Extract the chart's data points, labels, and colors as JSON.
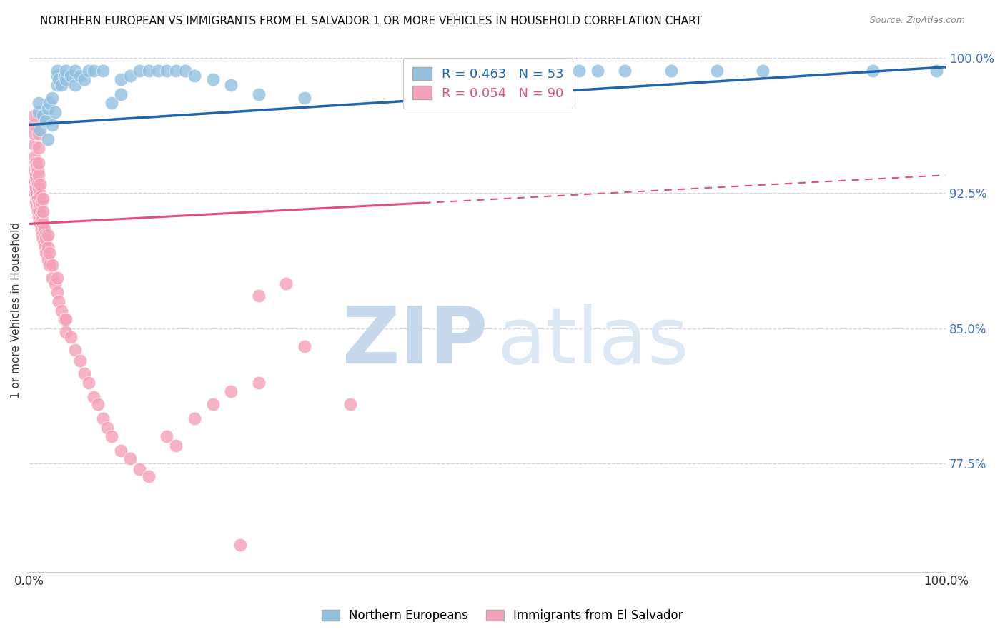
{
  "title": "NORTHERN EUROPEAN VS IMMIGRANTS FROM EL SALVADOR 1 OR MORE VEHICLES IN HOUSEHOLD CORRELATION CHART",
  "source": "Source: ZipAtlas.com",
  "ylabel": "1 or more Vehicles in Household",
  "legend_label_blue": "Northern Europeans",
  "legend_label_pink": "Immigrants from El Salvador",
  "R_blue": 0.463,
  "N_blue": 53,
  "R_pink": 0.054,
  "N_pink": 90,
  "blue_color": "#92c0e0",
  "pink_color": "#f4a0b8",
  "trendline_blue_color": "#2166ac",
  "trendline_pink_solid_color": "#e05080",
  "trendline_pink_dashed_color": "#e05080",
  "blue_scatter": [
    [
      0.01,
      0.97
    ],
    [
      0.01,
      0.975
    ],
    [
      0.012,
      0.96
    ],
    [
      0.015,
      0.968
    ],
    [
      0.018,
      0.965
    ],
    [
      0.02,
      0.955
    ],
    [
      0.02,
      0.972
    ],
    [
      0.022,
      0.975
    ],
    [
      0.025,
      0.963
    ],
    [
      0.025,
      0.978
    ],
    [
      0.028,
      0.97
    ],
    [
      0.03,
      0.985
    ],
    [
      0.03,
      0.99
    ],
    [
      0.03,
      0.993
    ],
    [
      0.032,
      0.988
    ],
    [
      0.035,
      0.985
    ],
    [
      0.038,
      0.99
    ],
    [
      0.04,
      0.988
    ],
    [
      0.04,
      0.993
    ],
    [
      0.045,
      0.99
    ],
    [
      0.05,
      0.985
    ],
    [
      0.05,
      0.993
    ],
    [
      0.055,
      0.99
    ],
    [
      0.06,
      0.988
    ],
    [
      0.065,
      0.993
    ],
    [
      0.07,
      0.993
    ],
    [
      0.08,
      0.993
    ],
    [
      0.09,
      0.975
    ],
    [
      0.1,
      0.98
    ],
    [
      0.1,
      0.988
    ],
    [
      0.11,
      0.99
    ],
    [
      0.12,
      0.993
    ],
    [
      0.13,
      0.993
    ],
    [
      0.14,
      0.993
    ],
    [
      0.15,
      0.993
    ],
    [
      0.16,
      0.993
    ],
    [
      0.17,
      0.993
    ],
    [
      0.18,
      0.99
    ],
    [
      0.2,
      0.988
    ],
    [
      0.22,
      0.985
    ],
    [
      0.25,
      0.98
    ],
    [
      0.3,
      0.978
    ],
    [
      0.45,
      0.993
    ],
    [
      0.5,
      0.993
    ],
    [
      0.55,
      0.993
    ],
    [
      0.6,
      0.993
    ],
    [
      0.62,
      0.993
    ],
    [
      0.65,
      0.993
    ],
    [
      0.7,
      0.993
    ],
    [
      0.75,
      0.993
    ],
    [
      0.8,
      0.993
    ],
    [
      0.92,
      0.993
    ],
    [
      0.99,
      0.993
    ]
  ],
  "pink_scatter": [
    [
      0.005,
      0.93
    ],
    [
      0.005,
      0.938
    ],
    [
      0.005,
      0.945
    ],
    [
      0.005,
      0.952
    ],
    [
      0.005,
      0.958
    ],
    [
      0.005,
      0.963
    ],
    [
      0.005,
      0.968
    ],
    [
      0.006,
      0.925
    ],
    [
      0.006,
      0.932
    ],
    [
      0.007,
      0.92
    ],
    [
      0.007,
      0.928
    ],
    [
      0.007,
      0.935
    ],
    [
      0.007,
      0.942
    ],
    [
      0.008,
      0.918
    ],
    [
      0.008,
      0.925
    ],
    [
      0.008,
      0.932
    ],
    [
      0.008,
      0.94
    ],
    [
      0.009,
      0.915
    ],
    [
      0.009,
      0.922
    ],
    [
      0.009,
      0.93
    ],
    [
      0.009,
      0.938
    ],
    [
      0.01,
      0.912
    ],
    [
      0.01,
      0.92
    ],
    [
      0.01,
      0.928
    ],
    [
      0.01,
      0.935
    ],
    [
      0.01,
      0.942
    ],
    [
      0.01,
      0.95
    ],
    [
      0.01,
      0.958
    ],
    [
      0.011,
      0.91
    ],
    [
      0.011,
      0.918
    ],
    [
      0.011,
      0.925
    ],
    [
      0.012,
      0.908
    ],
    [
      0.012,
      0.915
    ],
    [
      0.012,
      0.923
    ],
    [
      0.012,
      0.93
    ],
    [
      0.013,
      0.905
    ],
    [
      0.013,
      0.913
    ],
    [
      0.013,
      0.92
    ],
    [
      0.014,
      0.902
    ],
    [
      0.014,
      0.91
    ],
    [
      0.015,
      0.9
    ],
    [
      0.015,
      0.908
    ],
    [
      0.015,
      0.915
    ],
    [
      0.015,
      0.922
    ],
    [
      0.016,
      0.898
    ],
    [
      0.016,
      0.905
    ],
    [
      0.017,
      0.895
    ],
    [
      0.017,
      0.902
    ],
    [
      0.018,
      0.892
    ],
    [
      0.018,
      0.9
    ],
    [
      0.02,
      0.888
    ],
    [
      0.02,
      0.895
    ],
    [
      0.02,
      0.902
    ],
    [
      0.022,
      0.885
    ],
    [
      0.022,
      0.892
    ],
    [
      0.025,
      0.878
    ],
    [
      0.025,
      0.885
    ],
    [
      0.028,
      0.875
    ],
    [
      0.03,
      0.87
    ],
    [
      0.03,
      0.878
    ],
    [
      0.032,
      0.865
    ],
    [
      0.035,
      0.86
    ],
    [
      0.038,
      0.855
    ],
    [
      0.04,
      0.848
    ],
    [
      0.04,
      0.855
    ],
    [
      0.045,
      0.845
    ],
    [
      0.05,
      0.838
    ],
    [
      0.055,
      0.832
    ],
    [
      0.06,
      0.825
    ],
    [
      0.065,
      0.82
    ],
    [
      0.07,
      0.812
    ],
    [
      0.075,
      0.808
    ],
    [
      0.08,
      0.8
    ],
    [
      0.085,
      0.795
    ],
    [
      0.09,
      0.79
    ],
    [
      0.1,
      0.782
    ],
    [
      0.11,
      0.778
    ],
    [
      0.12,
      0.772
    ],
    [
      0.13,
      0.768
    ],
    [
      0.15,
      0.79
    ],
    [
      0.16,
      0.785
    ],
    [
      0.18,
      0.8
    ],
    [
      0.2,
      0.808
    ],
    [
      0.22,
      0.815
    ],
    [
      0.25,
      0.868
    ],
    [
      0.28,
      0.875
    ],
    [
      0.3,
      0.84
    ],
    [
      0.35,
      0.808
    ],
    [
      0.25,
      0.82
    ],
    [
      0.23,
      0.73
    ]
  ],
  "xlim": [
    0.0,
    1.0
  ],
  "ylim": [
    0.715,
    1.005
  ],
  "ytick_values": [
    1.0,
    0.925,
    0.85,
    0.775
  ],
  "grid_color": "#d0d0e8",
  "watermark_zip": "ZIP",
  "watermark_atlas": "atlas",
  "watermark_color": "#dce9f5"
}
